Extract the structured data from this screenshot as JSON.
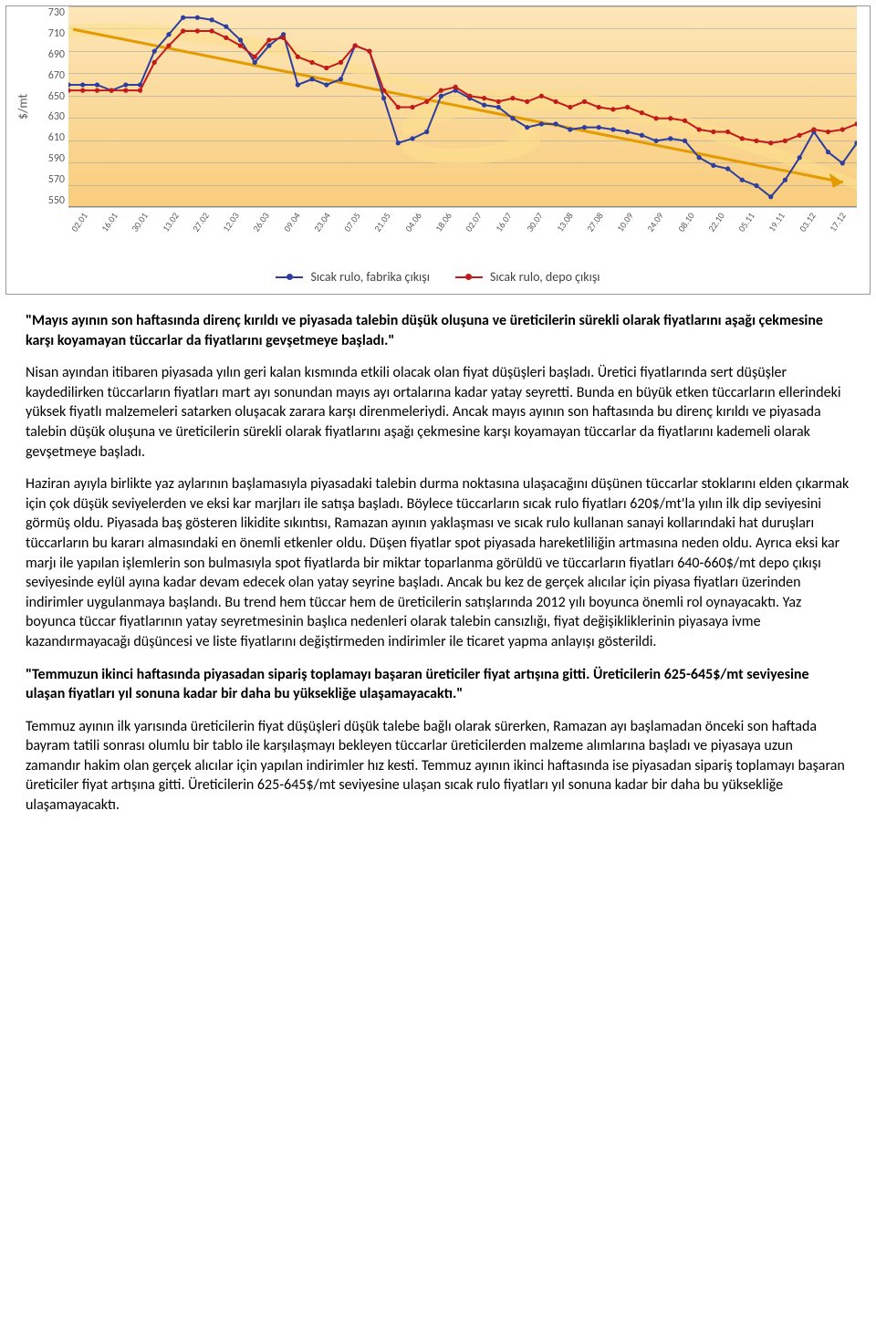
{
  "chart": {
    "type": "line",
    "y_axis_title": "$/mt",
    "y_ticks": [
      "730",
      "710",
      "690",
      "670",
      "650",
      "630",
      "610",
      "590",
      "570",
      "550"
    ],
    "ylim": [
      550,
      730
    ],
    "x_ticks": [
      "02.01",
      "16.01",
      "30.01",
      "13.02",
      "27.02",
      "12.03",
      "26.03",
      "09.04",
      "23.04",
      "07.05",
      "21.05",
      "04.06",
      "18.06",
      "02.07",
      "16.07",
      "30.07",
      "13.08",
      "27.08",
      "10.09",
      "24.09",
      "08.10",
      "22.10",
      "05.11",
      "19.11",
      "03.12",
      "17.12"
    ],
    "background_gradient": [
      "#fde6b8",
      "#f8cd7d"
    ],
    "gridline_color": "rgba(160,160,160,0.55)",
    "axis_text_color": "#5a5a5a",
    "swoosh_fill": "#fbe08d",
    "swoosh_opacity": 0.6,
    "arrow_color": "#e39b00",
    "series": [
      {
        "name": "Sıcak rulo, fabrika çıkışı",
        "color": "#2d3ea0",
        "marker": "circle",
        "line_width": 2,
        "values": [
          660,
          660,
          660,
          655,
          660,
          660,
          690,
          705,
          720,
          720,
          718,
          712,
          700,
          680,
          695,
          705,
          660,
          665,
          660,
          665,
          695,
          690,
          648,
          608,
          612,
          618,
          650,
          655,
          648,
          642,
          640,
          630,
          622,
          625,
          625,
          620,
          622,
          622,
          620,
          618,
          615,
          610,
          612,
          610,
          595,
          588,
          585,
          575,
          570,
          560,
          575,
          595,
          618,
          600,
          590,
          608
        ]
      },
      {
        "name": "Sıcak rulo, depo çıkışı",
        "color": "#c11a1a",
        "marker": "circle",
        "line_width": 2,
        "values": [
          655,
          655,
          655,
          655,
          655,
          655,
          680,
          695,
          708,
          708,
          708,
          702,
          695,
          685,
          700,
          702,
          685,
          680,
          675,
          680,
          695,
          690,
          655,
          640,
          640,
          645,
          655,
          658,
          650,
          648,
          645,
          648,
          645,
          650,
          645,
          640,
          645,
          640,
          638,
          640,
          635,
          630,
          630,
          628,
          620,
          618,
          618,
          612,
          610,
          608,
          610,
          615,
          620,
          618,
          620,
          625
        ]
      }
    ]
  },
  "legend": {
    "s1": "Sıcak rulo, fabrika çıkışı",
    "s2": "Sıcak rulo, depo çıkışı"
  },
  "text": {
    "quote1": "\"Mayıs ayının son haftasında direnç kırıldı ve piyasada talebin düşük oluşuna ve üreticilerin sürekli olarak fiyatlarını aşağı çekmesine karşı koyamayan tüccarlar da fiyatlarını gevşetmeye başladı.\"",
    "p1": "Nisan ayından itibaren piyasada yılın geri kalan kısmında etkili olacak olan fiyat düşüşleri başladı. Üretici fiyatlarında sert düşüşler kaydedilirken tüccarların fiyatları mart ayı sonundan mayıs ayı ortalarına kadar yatay seyretti. Bunda en büyük etken tüccarların ellerindeki yüksek fiyatlı malzemeleri satarken oluşacak zarara karşı direnmeleriydi. Ancak mayıs ayının son haftasında bu direnç kırıldı ve piyasada talebin düşük oluşuna ve üreticilerin sürekli olarak fiyatlarını aşağı çekmesine karşı koyamayan tüccarlar da fiyatlarını kademeli olarak gevşetmeye başladı.",
    "p2": "Haziran ayıyla birlikte yaz aylarının başlamasıyla piyasadaki talebin durma noktasına ulaşacağını düşünen tüccarlar stoklarını elden çıkarmak için çok düşük seviyelerden ve eksi kar marjları ile satışa başladı. Böylece tüccarların sıcak rulo fiyatları 620$/mt'la yılın ilk dip seviyesini görmüş oldu. Piyasada baş gösteren likidite sıkıntısı, Ramazan ayının yaklaşması ve sıcak rulo kullanan sanayi kollarındaki hat duruşları tüccarların bu kararı almasındaki en önemli etkenler oldu. Düşen fiyatlar spot piyasada hareketliliğin artmasına neden oldu. Ayrıca eksi kar marjı ile yapılan işlemlerin son bulmasıyla spot fiyatlarda bir miktar toparlanma görüldü ve tüccarların fiyatları 640-660$/mt depo çıkışı seviyesinde eylül ayına kadar devam edecek olan yatay seyrine başladı. Ancak bu kez de gerçek alıcılar için piyasa fiyatları üzerinden indirimler uygulanmaya başlandı. Bu trend hem tüccar hem de üreticilerin satışlarında 2012 yılı boyunca önemli rol oynayacaktı. Yaz boyunca tüccar fiyatlarının yatay seyretmesinin başlıca nedenleri olarak talebin cansızlığı, fiyat değişikliklerinin piyasaya ivme kazandırmayacağı düşüncesi ve liste fiyatlarını değiştirmeden indirimler ile ticaret yapma anlayışı gösterildi.",
    "quote2": "\"Temmuzun ikinci haftasında piyasadan sipariş toplamayı başaran üreticiler fiyat artışına gitti. Üreticilerin 625-645$/mt seviyesine ulaşan fiyatları yıl sonuna kadar bir daha bu yüksekliğe ulaşamayacaktı.\"",
    "p3": "Temmuz ayının ilk yarısında üreticilerin fiyat düşüşleri düşük talebe bağlı olarak sürerken, Ramazan ayı başlamadan önceki son haftada bayram tatili sonrası olumlu bir tablo ile karşılaşmayı bekleyen tüccarlar üreticilerden malzeme alımlarına başladı ve piyasaya uzun zamandır hakim olan gerçek alıcılar için yapılan indirimler hız kesti. Temmuz ayının ikinci haftasında ise piyasadan sipariş toplamayı başaran üreticiler fiyat artışına gitti. Üreticilerin 625-645$/mt seviyesine ulaşan sıcak rulo fiyatları yıl sonuna kadar bir daha bu yüksekliğe ulaşamayacaktı."
  }
}
